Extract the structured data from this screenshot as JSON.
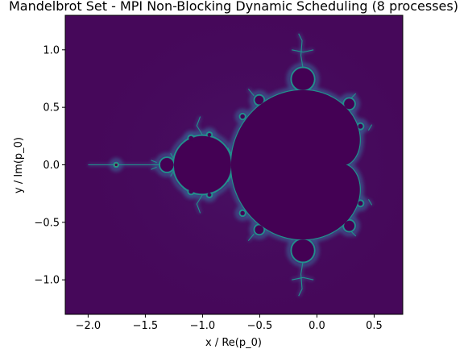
{
  "chart_data": {
    "type": "heatmap",
    "title": "Mandelbrot Set - MPI Non-Blocking Dynamic Scheduling (8 processes)",
    "xlabel": "x / Re(p_0)",
    "ylabel": "y / Im(p_0)",
    "xlim": [
      -2.2,
      0.75
    ],
    "ylim": [
      -1.3,
      1.3
    ],
    "xticks": [
      -2.0,
      -1.5,
      -1.0,
      -0.5,
      0.0,
      0.5
    ],
    "xtick_labels": [
      "−2.0",
      "−1.5",
      "−1.0",
      "−0.5",
      "0.0",
      "0.5"
    ],
    "yticks": [
      1.0,
      0.5,
      0.0,
      -0.5,
      -1.0
    ],
    "ytick_labels": [
      "1.0",
      "0.5",
      "0.0",
      "−0.5",
      "−1.0"
    ],
    "colormap": "viridis",
    "colors": {
      "interior": "#440154",
      "background": "#46085a",
      "glow": "#3b528b",
      "edge": "#21918c",
      "hot": "#5ec962"
    },
    "grid": false,
    "legend": "none"
  }
}
